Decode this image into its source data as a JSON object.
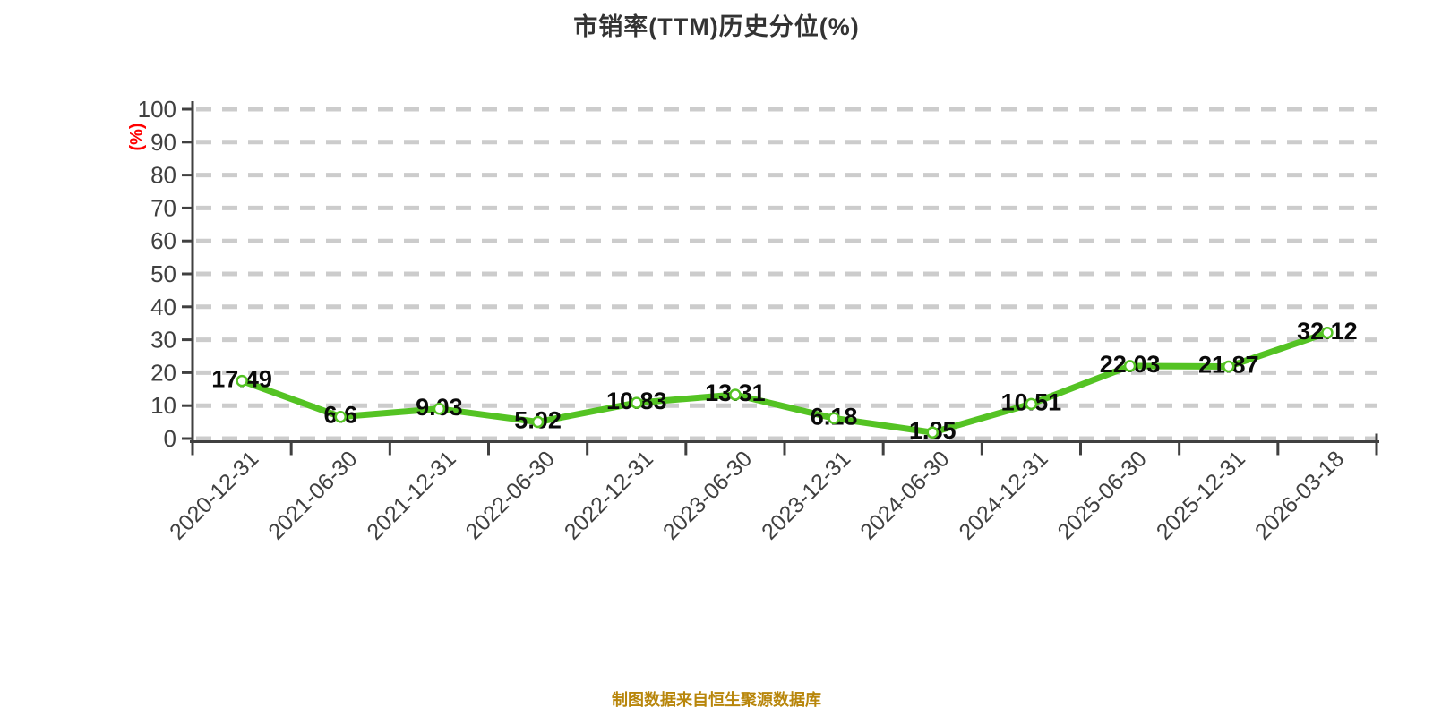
{
  "title": "市销率(TTM)历史分位(%)",
  "footer": "制图数据来自恒生聚源数据库",
  "colors": {
    "background": "#ffffff",
    "title": "#333333",
    "line": "#54c323",
    "marker_fill": "#ffffff",
    "grid": "#cccccc",
    "axis": "#404040",
    "axis_label": "#404040",
    "data_label": "#0a0a0a",
    "unit_label": "#ff0000",
    "footer": "#b8860b"
  },
  "chart_data": {
    "type": "line",
    "title": "市销率(TTM)历史分位(%)",
    "categories": [
      "2020-12-31",
      "2021-06-30",
      "2021-12-31",
      "2022-06-30",
      "2022-12-31",
      "2023-06-30",
      "2023-12-31",
      "2024-06-30",
      "2024-12-31",
      "2025-06-30",
      "2025-12-31",
      "2026-03-18"
    ],
    "values": [
      17.49,
      6.6,
      9.03,
      5.02,
      10.83,
      13.31,
      6.18,
      1.85,
      10.51,
      22.03,
      21.87,
      32.12
    ],
    "value_labels": [
      "17.49",
      "6.6",
      "9.03",
      "5.02",
      "10.83",
      "13.31",
      "6.18",
      "1.85",
      "10.51",
      "22.03",
      "21.87",
      "32.12"
    ],
    "xlabel": "",
    "ylabel": "(%)",
    "ylim": [
      0,
      100
    ],
    "ytick_step": 10,
    "grid": "dashed-horizontal",
    "legend": "none",
    "source_note": "制图数据来自恒生聚源数据库"
  }
}
